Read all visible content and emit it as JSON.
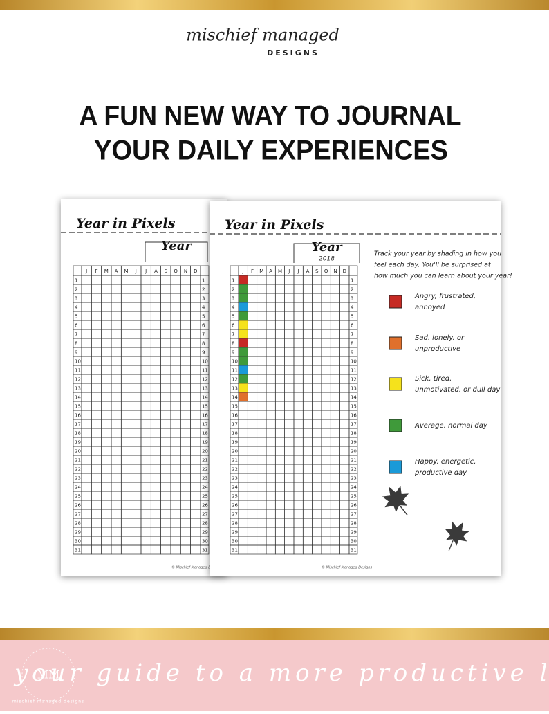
{
  "brand": {
    "name": "mischief managed",
    "sub": "DESIGNS"
  },
  "headline": [
    "A FUN NEW WAY TO JOURNAL",
    "YOUR DAILY EXPERIENCES"
  ],
  "back_page": {
    "title": "Year in Pixels",
    "year_label": "Year",
    "footer": "© Mischief Managed Designs"
  },
  "front_page": {
    "title": "Year in Pixels",
    "year_label": "Year",
    "year": "2018",
    "instructions": [
      "Track your year by shading in how you",
      "feel each day. You'll be surprised at",
      "how much you can learn about your year!"
    ],
    "legend": [
      {
        "label": [
          "Angry, frustrated,",
          "annoyed"
        ],
        "color": "#c62a24"
      },
      {
        "label": [
          "Sad, lonely, or",
          "unproductive"
        ],
        "color": "#e0702c"
      },
      {
        "label": [
          "Sick, tired,",
          "unmotivated, or dull day"
        ],
        "color": "#f5e21c"
      },
      {
        "label": [
          "Average, normal day"
        ],
        "color": "#3f9a3a"
      },
      {
        "label": [
          "Happy, energetic,",
          "productive day"
        ],
        "color": "#1a9ad8"
      }
    ],
    "january_moods": [
      0,
      3,
      3,
      4,
      3,
      2,
      2,
      0,
      3,
      3,
      4,
      3,
      2,
      1
    ],
    "footer": "© Mischief Managed Designs"
  },
  "months": [
    "J",
    "F",
    "M",
    "A",
    "M",
    "J",
    "J",
    "A",
    "S",
    "O",
    "N",
    "D"
  ],
  "days": [
    1,
    2,
    3,
    4,
    5,
    6,
    7,
    8,
    9,
    10,
    11,
    12,
    13,
    14,
    15,
    16,
    17,
    18,
    19,
    20,
    21,
    22,
    23,
    24,
    25,
    26,
    27,
    28,
    29,
    30,
    31
  ],
  "tagline": "your guide to a more productive life",
  "badge": {
    "initials": "MM",
    "ring": "mischief managed designs"
  }
}
